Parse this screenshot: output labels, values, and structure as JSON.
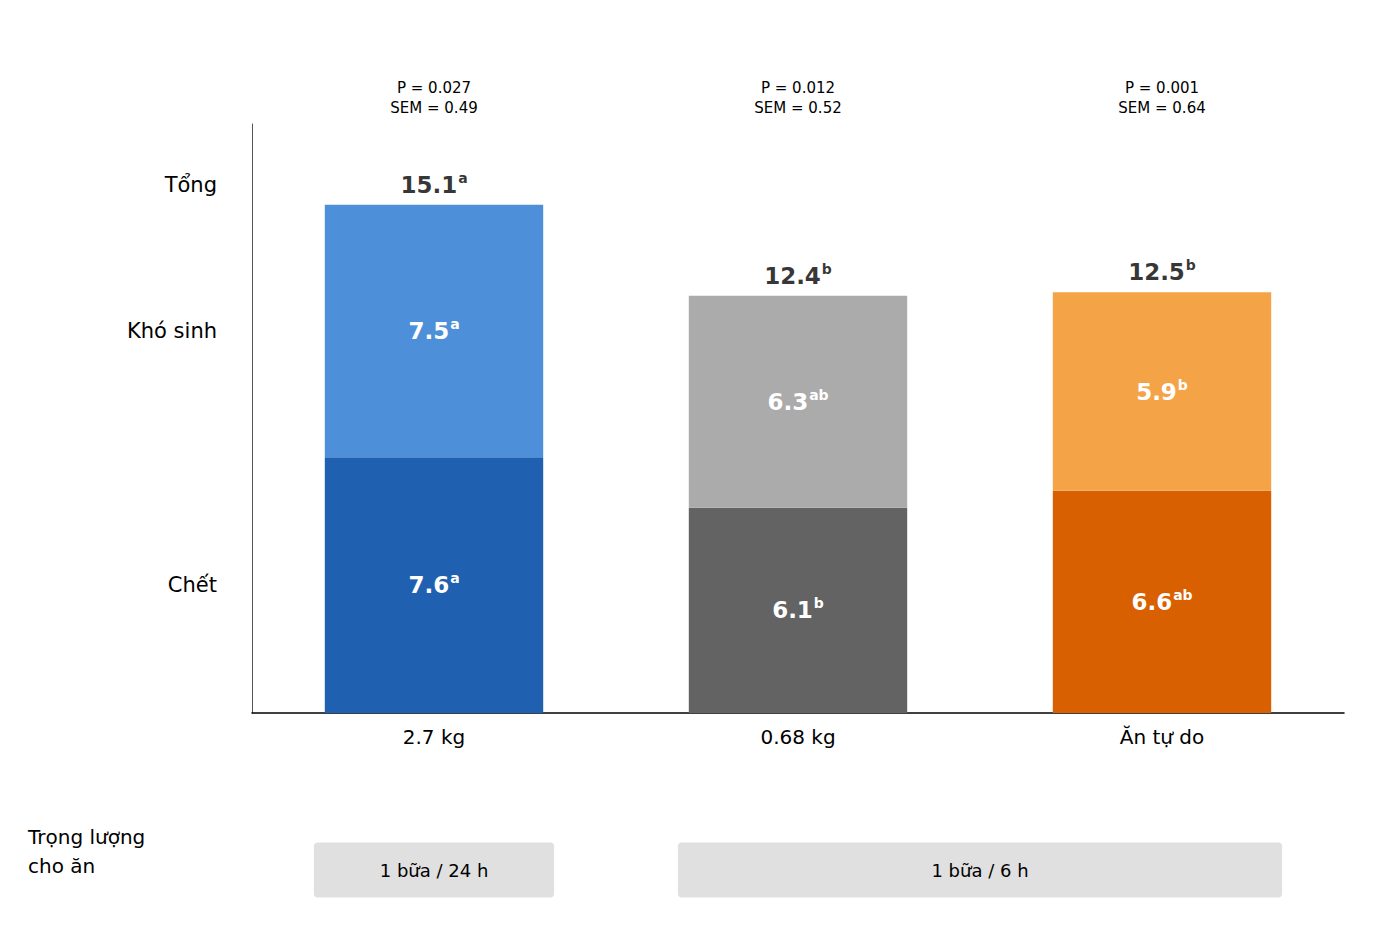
{
  "chart_data": {
    "type": "bar",
    "stacked": true,
    "data_labels": true,
    "grid": false,
    "tick_labels": "x",
    "categories": [
      "2.7 kg",
      "0.68 kg",
      "Ăn tự do"
    ],
    "series": [
      {
        "name": "Chết",
        "values": [
          7.6,
          6.1,
          6.6
        ],
        "colors": [
          "#2060b0",
          "#636363",
          "#d96000"
        ],
        "superscripts": [
          "a",
          "b",
          "ab"
        ]
      },
      {
        "name": "Khó sinh",
        "values": [
          7.5,
          6.3,
          5.9
        ],
        "colors": [
          "#4d90d9",
          "#ababab",
          "#f5a347"
        ],
        "superscripts": [
          "a",
          "ab",
          "b"
        ]
      }
    ],
    "total_name": "Tổng",
    "totals": [
      15.1,
      12.4,
      12.5
    ],
    "total_superscripts": [
      "a",
      "b",
      "b"
    ],
    "p_values": [
      "P = 0.027",
      "P = 0.012",
      "P = 0.001"
    ],
    "sem_values": [
      "SEM = 0.49",
      "SEM = 0.52",
      "SEM = 0.64"
    ],
    "xlabel": [
      "Trọng lượng",
      "cho ăn"
    ],
    "groups": [
      {
        "label": "1 bữa / 24 h",
        "categories": [
          "2.7 kg"
        ]
      },
      {
        "label": "1 bữa / 6 h",
        "categories": [
          "0.68 kg",
          "Ăn tự do"
        ]
      }
    ],
    "group_color": "#e0e0e0",
    "ylim": [
      0,
      17.5
    ],
    "yticks": []
  }
}
